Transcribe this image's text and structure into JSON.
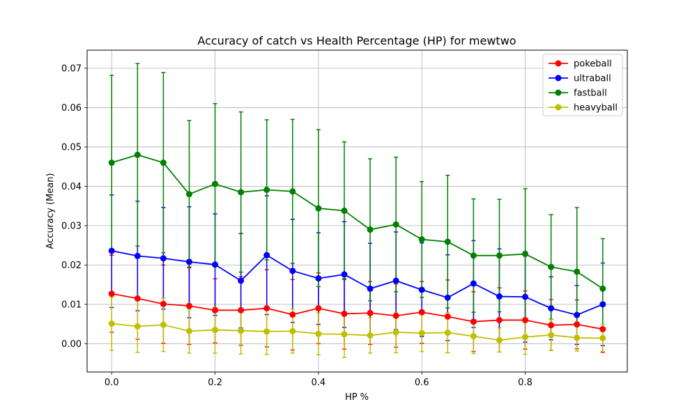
{
  "chart_data": {
    "type": "line",
    "title": "Accuracy of catch vs Health Percentage (HP) for mewtwo",
    "xlabel": "HP %",
    "ylabel": "Accuracy (Mean)",
    "xlim": [
      -0.0475,
      0.9975
    ],
    "ylim": [
      -0.0072,
      0.0746
    ],
    "xticks": [
      0.0,
      0.2,
      0.4,
      0.6,
      0.8
    ],
    "xtick_labels": [
      "0.0",
      "0.2",
      "0.4",
      "0.6",
      "0.8"
    ],
    "yticks": [
      0.0,
      0.01,
      0.02,
      0.03,
      0.04,
      0.05,
      0.06,
      0.07
    ],
    "ytick_labels": [
      "0.00",
      "0.01",
      "0.02",
      "0.03",
      "0.04",
      "0.05",
      "0.06",
      "0.07"
    ],
    "grid": true,
    "legend_position": "top-right",
    "x": [
      0.0,
      0.05,
      0.1,
      0.15,
      0.2,
      0.25,
      0.3,
      0.35,
      0.4,
      0.45,
      0.5,
      0.55,
      0.6,
      0.65,
      0.7,
      0.75,
      0.8,
      0.85,
      0.9,
      0.95
    ],
    "series": [
      {
        "name": "pokeball",
        "color": "#ff0000",
        "values": [
          0.0127,
          0.0115,
          0.0101,
          0.0096,
          0.0085,
          0.0085,
          0.009,
          0.0074,
          0.009,
          0.0076,
          0.0078,
          0.0071,
          0.008,
          0.0069,
          0.0056,
          0.006,
          0.006,
          0.0047,
          0.0049,
          0.0037
        ],
        "err_low": [
          0.0029,
          0.0011,
          0.0001,
          -0.0002,
          0.0002,
          -0.0004,
          -0.0008,
          -0.0016,
          0.0,
          -0.0014,
          -0.0002,
          -0.0009,
          0.0001,
          -0.0023,
          -0.002,
          -0.0021,
          -0.0014,
          -0.0017,
          -0.0013,
          -0.0022
        ],
        "err_high": [
          0.0225,
          0.022,
          0.02,
          0.0195,
          0.0165,
          0.017,
          0.0188,
          0.0163,
          0.018,
          0.0165,
          0.0158,
          0.0152,
          0.0158,
          0.0162,
          0.0132,
          0.0142,
          0.0134,
          0.0112,
          0.0111,
          0.0096
        ]
      },
      {
        "name": "ultraball",
        "color": "#0000ff",
        "values": [
          0.0236,
          0.0223,
          0.0217,
          0.0208,
          0.0201,
          0.016,
          0.0225,
          0.0185,
          0.0166,
          0.0176,
          0.014,
          0.016,
          0.0137,
          0.0117,
          0.0153,
          0.012,
          0.0119,
          0.009,
          0.0073,
          0.01
        ],
        "err_low": [
          0.0092,
          0.0084,
          0.0088,
          0.0066,
          0.0072,
          0.004,
          0.0074,
          0.0054,
          0.0049,
          0.0041,
          0.0025,
          0.0036,
          0.0018,
          0.0008,
          0.0041,
          0.0012,
          0.0004,
          0.001,
          -0.0002,
          -0.0005
        ],
        "err_high": [
          0.0378,
          0.0362,
          0.0346,
          0.0348,
          0.033,
          0.028,
          0.0376,
          0.0316,
          0.0282,
          0.031,
          0.0255,
          0.0284,
          0.0256,
          0.0226,
          0.0262,
          0.0241,
          0.0234,
          0.017,
          0.0148,
          0.0205
        ]
      },
      {
        "name": "fastball",
        "color": "#008000",
        "values": [
          0.046,
          0.048,
          0.046,
          0.038,
          0.0406,
          0.0385,
          0.0391,
          0.0387,
          0.0344,
          0.0338,
          0.029,
          0.0303,
          0.0265,
          0.0259,
          0.0224,
          0.0224,
          0.0228,
          0.0195,
          0.0183,
          0.014
        ],
        "err_low": [
          0.0238,
          0.0248,
          0.0231,
          0.0193,
          0.0203,
          0.0182,
          0.0213,
          0.0204,
          0.0145,
          0.0163,
          0.0109,
          0.0132,
          0.0118,
          0.0091,
          0.008,
          0.0081,
          0.0062,
          0.0062,
          0.002,
          0.0012
        ],
        "err_high": [
          0.0682,
          0.0712,
          0.0689,
          0.0567,
          0.061,
          0.0589,
          0.0569,
          0.057,
          0.0544,
          0.0513,
          0.047,
          0.0474,
          0.0412,
          0.0428,
          0.0368,
          0.0367,
          0.0394,
          0.0328,
          0.0346,
          0.0267
        ]
      },
      {
        "name": "heavyball",
        "color": "#bfbf00",
        "values": [
          0.0051,
          0.0044,
          0.0048,
          0.0032,
          0.0035,
          0.0033,
          0.0031,
          0.0032,
          0.0025,
          0.0024,
          0.0021,
          0.0029,
          0.0027,
          0.0028,
          0.0019,
          0.0009,
          0.0017,
          0.0022,
          0.0015,
          0.0014
        ],
        "err_low": [
          -0.0017,
          -0.0022,
          -0.002,
          -0.0024,
          -0.0024,
          -0.0026,
          -0.0027,
          -0.0024,
          -0.0028,
          -0.0035,
          -0.0024,
          -0.0023,
          -0.002,
          -0.0023,
          -0.0025,
          -0.0021,
          -0.0027,
          -0.0017,
          -0.0019,
          -0.002
        ],
        "err_high": [
          0.0118,
          0.011,
          0.0116,
          0.0088,
          0.0093,
          0.0091,
          0.0089,
          0.0088,
          0.0078,
          0.0082,
          0.0066,
          0.008,
          0.0074,
          0.0079,
          0.0062,
          0.004,
          0.0061,
          0.0061,
          0.0049,
          0.0048
        ]
      }
    ]
  }
}
